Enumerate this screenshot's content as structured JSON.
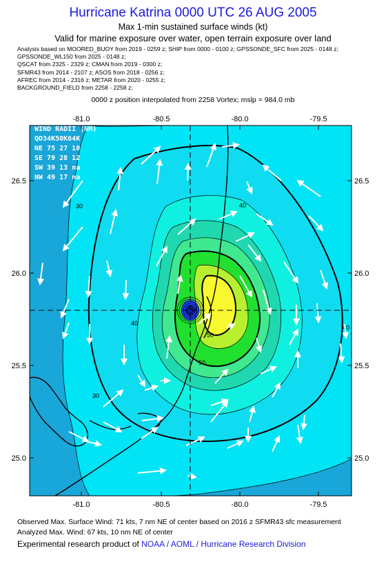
{
  "header": {
    "title": "Hurricane Katrina 0000 UTC 26 AUG 2005",
    "subtitle": "Max 1-min sustained surface winds (kt)",
    "validity": "Valid for marine exposure over water, open terrain exposure over land",
    "analysis_lines": [
      "Analysis based on  MOORED_BUOY from 2019 - 0259 z;  SHIP from 0000 - 0100 z;  GPSSONDE_SFC from 2025 - 0148 z;",
      "GPSSONDE_WL150 from 2025 - 0148 z;",
      "QSCAT from 2325 - 2329 z;  CMAN from 2019 - 0300 z;",
      "SFMR43 from 2014 - 2107 z;  ASOS from 2018 - 0256 z;",
      "AFREC from 2014 - 2316 z;  METAR from 2020 - 0255 z;",
      "BACKGROUND_FIELD from 2258 - 2258 z;"
    ],
    "position_note": "0000 z position interpolated from 2258 Vortex; mslp = 984.0 mb"
  },
  "map": {
    "lon_ticks": [
      "-81.0",
      "-80.5",
      "-80.0",
      "-79.5"
    ],
    "lat_ticks": [
      "26.5",
      "26.0",
      "25.5",
      "25.0"
    ],
    "contour_labels": [
      "30",
      "40",
      "50",
      "40",
      "50",
      "30",
      "40"
    ],
    "center": {
      "lon": -80.28,
      "lat": 25.8
    },
    "wind_radii": {
      "header": "WIND RADII (NM)",
      "columns": "QD34K50K64K",
      "rows": [
        "NE 75 27 10",
        "SE 79 28 12",
        "SW 39 13 na",
        "NW 49 17 na"
      ]
    },
    "colors": {
      "outer": "#19a6d8",
      "cyan": "#00e4f5",
      "lightblue": "#2ccde8",
      "aqua": "#10f0e0",
      "teal": "#20d8b0",
      "green1": "#40e890",
      "green2": "#22e030",
      "yellowgreen": "#b8f030",
      "yellow": "#f8f830",
      "eye": "#2040ff"
    }
  },
  "footer": {
    "observed": "Observed Max. Surface Wind: 71 kts, 7 nm NE of center based on 2016 z SFMR43 sfc measurement",
    "analyzed": "Analyzed Max. Wind: 67 kts, 10 nm NE of center",
    "credit_prefix": "Experimental research product of ",
    "credit_link": "NOAA / AOML / Hurricane Research Division"
  }
}
